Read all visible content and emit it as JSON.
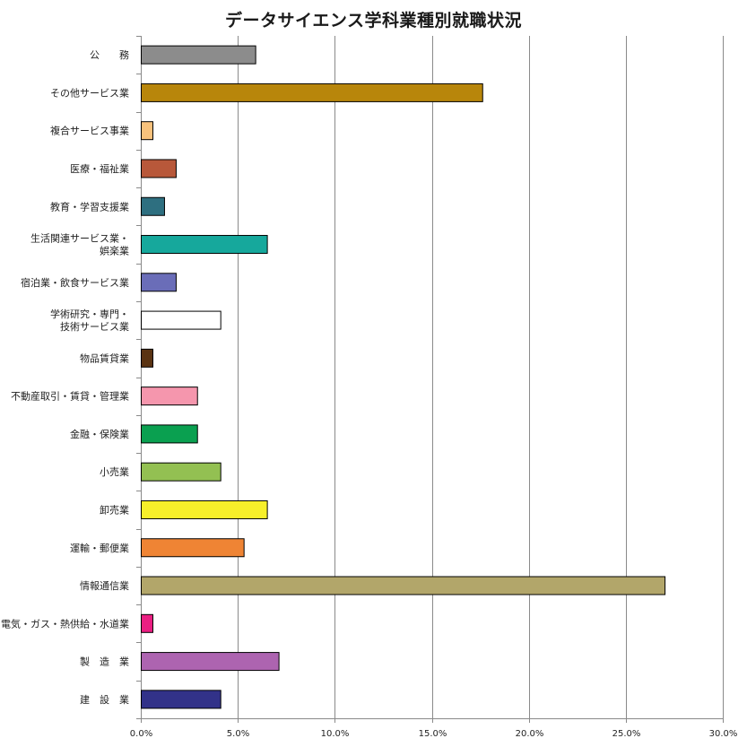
{
  "chart_data": {
    "type": "bar",
    "orientation": "horizontal",
    "title": "データサイエンス学科業種別就職状況",
    "xlabel": "",
    "ylabel": "",
    "xlim": [
      0,
      30
    ],
    "x_ticks": [
      "0.0%",
      "5.0%",
      "10.0%",
      "15.0%",
      "20.0%",
      "25.0%",
      "30.0%"
    ],
    "grid": "vertical",
    "categories": [
      [
        "公　　務"
      ],
      [
        "その他サービス業"
      ],
      [
        "複合サービス事業"
      ],
      [
        "医療・福祉業"
      ],
      [
        "教育・学習支援業"
      ],
      [
        "生活関連サービス業・",
        "娯楽業"
      ],
      [
        "宿泊業・飲食サービス業"
      ],
      [
        "学術研究・専門・",
        "技術サービス業"
      ],
      [
        "物品賃貸業"
      ],
      [
        "不動産取引・賃貸・管理業"
      ],
      [
        "金融・保険業"
      ],
      [
        "小売業"
      ],
      [
        "卸売業"
      ],
      [
        "運輸・郵便業"
      ],
      [
        "情報通信業"
      ],
      [
        "電気・ガス・熱供給・水道業"
      ],
      [
        "製　造　業"
      ],
      [
        "建　設　業"
      ]
    ],
    "values": [
      5.9,
      17.6,
      0.6,
      1.8,
      1.2,
      6.5,
      1.8,
      4.1,
      0.6,
      2.9,
      2.9,
      4.1,
      6.5,
      5.3,
      27.0,
      0.6,
      7.1,
      4.1
    ],
    "colors": [
      "#8c8c8c",
      "#b8860b",
      "#f8c27c",
      "#b8583a",
      "#2e6f80",
      "#16a89c",
      "#6a6db8",
      "#ffffff",
      "#5a3312",
      "#f596ad",
      "#0aa050",
      "#93c052",
      "#f7ef2a",
      "#ef8434",
      "#b2a66a",
      "#ea1f82",
      "#ad64b0",
      "#323289"
    ]
  }
}
